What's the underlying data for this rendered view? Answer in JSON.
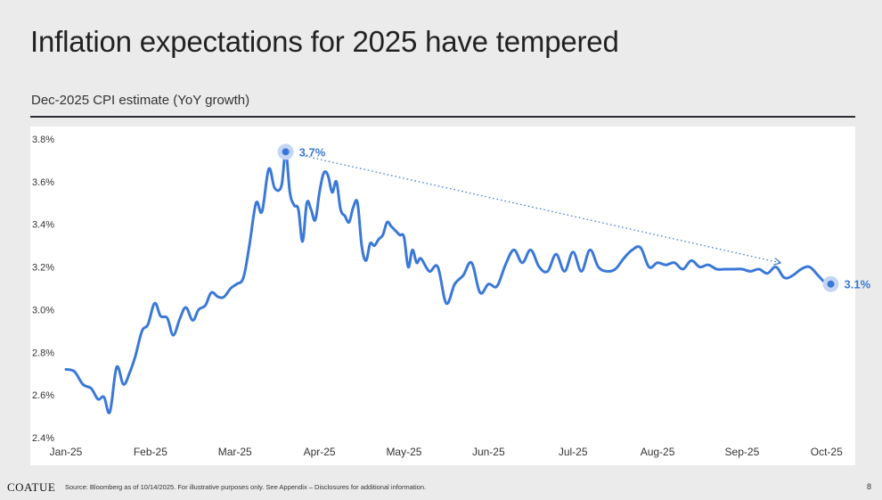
{
  "header": {
    "title": "Inflation expectations for 2025 have tempered",
    "subtitle": "Dec-2025 CPI estimate (YoY growth)"
  },
  "footer": {
    "logo": "COATUE",
    "source": "Source: Bloomberg as of 10/14/2025. For illustrative purposes only. See Appendix – Disclosures for additional information.",
    "page_number": "8"
  },
  "colors": {
    "line": "#3a78d8",
    "halo": "#c4d6f3",
    "background": "#ebebeb",
    "panel": "#ffffff"
  },
  "chart_data": {
    "type": "line",
    "title": "Dec-2025 CPI estimate (YoY growth)",
    "xlabel": "",
    "ylabel": "",
    "ylim": [
      2.4,
      3.8
    ],
    "yticks": [
      2.4,
      2.6,
      2.8,
      3.0,
      3.2,
      3.4,
      3.6,
      3.8
    ],
    "ytick_labels": [
      "2.4%",
      "2.6%",
      "2.8%",
      "3.0%",
      "3.2%",
      "3.4%",
      "3.6%",
      "3.8%"
    ],
    "xlim": [
      0,
      9.15
    ],
    "xticks": [
      0,
      1,
      2,
      3,
      4,
      5,
      6,
      7,
      8,
      9
    ],
    "xtick_labels": [
      "Jan-25",
      "Feb-25",
      "Mar-25",
      "Apr-25",
      "May-25",
      "Jun-25",
      "Jul-25",
      "Aug-25",
      "Sep-25",
      "Oct-25"
    ],
    "grid": false,
    "series": [
      {
        "name": "Dec-2025 CPI estimate",
        "x": [
          0,
          0.1,
          0.2,
          0.3,
          0.38,
          0.45,
          0.52,
          0.6,
          0.68,
          0.75,
          0.82,
          0.9,
          0.97,
          1.05,
          1.12,
          1.2,
          1.27,
          1.35,
          1.42,
          1.5,
          1.57,
          1.65,
          1.72,
          1.8,
          1.87,
          1.95,
          2.02,
          2.1,
          2.17,
          2.25,
          2.32,
          2.4,
          2.47,
          2.55,
          2.6,
          2.65,
          2.7,
          2.75,
          2.8,
          2.85,
          2.9,
          2.95,
          3.0,
          3.05,
          3.1,
          3.15,
          3.2,
          3.25,
          3.3,
          3.35,
          3.4,
          3.45,
          3.5,
          3.55,
          3.6,
          3.65,
          3.7,
          3.75,
          3.8,
          3.85,
          3.9,
          3.95,
          4.0,
          4.05,
          4.1,
          4.15,
          4.2,
          4.3,
          4.4,
          4.5,
          4.6,
          4.7,
          4.8,
          4.9,
          5.0,
          5.1,
          5.2,
          5.3,
          5.4,
          5.5,
          5.6,
          5.7,
          5.8,
          5.9,
          6.0,
          6.1,
          6.2,
          6.3,
          6.4,
          6.5,
          6.6,
          6.7,
          6.8,
          6.9,
          7.0,
          7.1,
          7.2,
          7.3,
          7.4,
          7.5,
          7.6,
          7.7,
          7.8,
          7.9,
          8.0,
          8.1,
          8.2,
          8.3,
          8.4,
          8.5,
          8.6,
          8.7,
          8.8,
          8.9,
          9.0,
          9.05
        ],
        "values": [
          2.72,
          2.71,
          2.65,
          2.63,
          2.58,
          2.59,
          2.52,
          2.73,
          2.65,
          2.7,
          2.78,
          2.9,
          2.93,
          3.03,
          2.97,
          2.96,
          2.88,
          2.96,
          3.01,
          2.95,
          3.0,
          3.02,
          3.08,
          3.06,
          3.06,
          3.1,
          3.12,
          3.15,
          3.3,
          3.5,
          3.46,
          3.66,
          3.57,
          3.58,
          3.74,
          3.55,
          3.49,
          3.47,
          3.32,
          3.5,
          3.47,
          3.42,
          3.55,
          3.64,
          3.63,
          3.55,
          3.6,
          3.47,
          3.44,
          3.41,
          3.48,
          3.5,
          3.3,
          3.23,
          3.31,
          3.3,
          3.33,
          3.35,
          3.41,
          3.39,
          3.37,
          3.35,
          3.34,
          3.2,
          3.28,
          3.22,
          3.24,
          3.18,
          3.2,
          3.03,
          3.12,
          3.16,
          3.22,
          3.08,
          3.12,
          3.11,
          3.21,
          3.28,
          3.22,
          3.28,
          3.2,
          3.18,
          3.26,
          3.18,
          3.27,
          3.18,
          3.28,
          3.2,
          3.18,
          3.19,
          3.24,
          3.28,
          3.29,
          3.2,
          3.22,
          3.21,
          3.22,
          3.19,
          3.23,
          3.2,
          3.21,
          3.19,
          3.19,
          3.19,
          3.19,
          3.18,
          3.19,
          3.17,
          3.2,
          3.15,
          3.16,
          3.19,
          3.2,
          3.16,
          3.12,
          3.12
        ]
      }
    ],
    "annotations": [
      {
        "label": "3.7%",
        "x": 2.6,
        "y": 3.74,
        "kind": "peak-marker"
      },
      {
        "label": "3.1%",
        "x": 9.05,
        "y": 3.12,
        "kind": "end-marker"
      }
    ],
    "trend_arrow": {
      "from": [
        2.83,
        3.72
      ],
      "to": [
        8.45,
        3.22
      ],
      "style": "dotted"
    }
  }
}
